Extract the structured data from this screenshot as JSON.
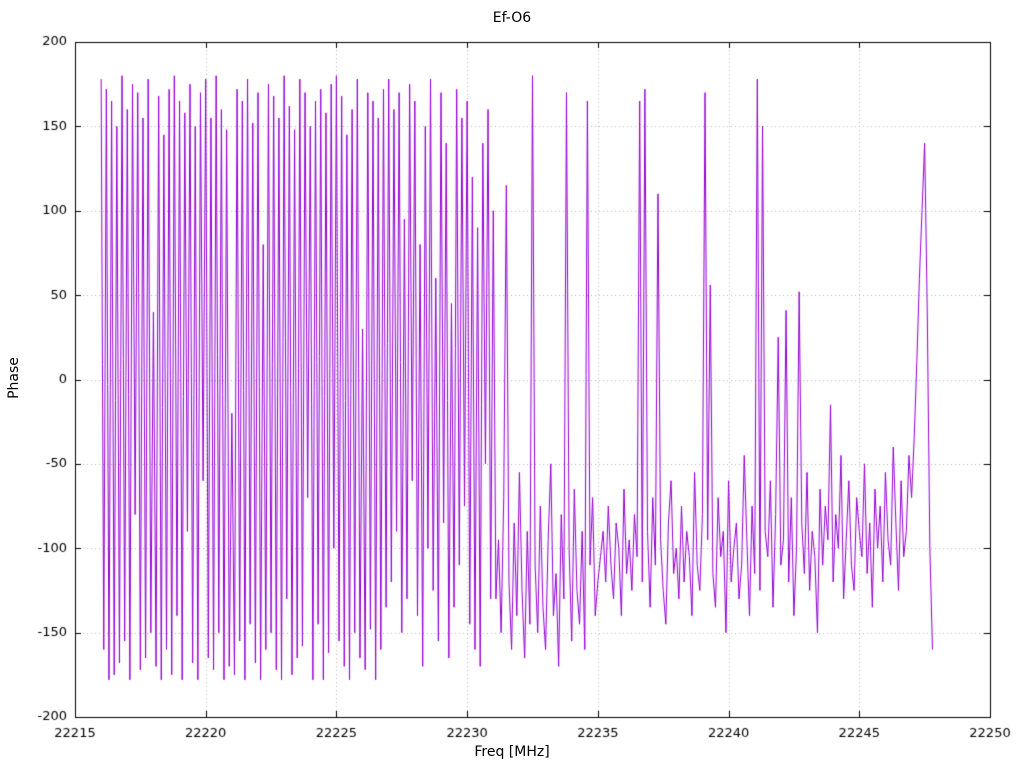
{
  "chart_data": {
    "type": "line",
    "title": "Ef-O6",
    "xlabel": "Freq [MHz]",
    "ylabel": "Phase",
    "xlim": [
      22215,
      22250
    ],
    "ylim": [
      -200,
      200
    ],
    "x_ticks": [
      22215,
      22220,
      22225,
      22230,
      22235,
      22240,
      22245,
      22250
    ],
    "y_ticks": [
      -200,
      -150,
      -100,
      -50,
      0,
      50,
      100,
      150,
      200
    ],
    "grid": true,
    "legend": "none",
    "line_color": "#9400d3",
    "axis_color": "#000000",
    "grid_color": "#b8b8b8",
    "series": [
      {
        "name": "phase",
        "x_start": 22216.0,
        "x_step": 0.1,
        "values": [
          178,
          -160,
          172,
          -178,
          165,
          -175,
          150,
          -168,
          180,
          -155,
          160,
          -178,
          175,
          -80,
          170,
          -172,
          155,
          -165,
          178,
          -150,
          40,
          -170,
          168,
          -178,
          145,
          -160,
          172,
          -175,
          180,
          -140,
          165,
          -178,
          158,
          -90,
          175,
          -168,
          150,
          -178,
          170,
          -60,
          178,
          -165,
          155,
          -172,
          180,
          -150,
          160,
          -178,
          148,
          -170,
          -20,
          -175,
          172,
          -155,
          165,
          -178,
          178,
          -145,
          152,
          -168,
          170,
          -178,
          80,
          -160,
          175,
          -150,
          168,
          -172,
          155,
          -178,
          180,
          -130,
          162,
          -175,
          148,
          -165,
          178,
          -158,
          170,
          -70,
          150,
          -178,
          165,
          -145,
          172,
          -178,
          158,
          -162,
          175,
          -100,
          180,
          -155,
          168,
          -170,
          145,
          -178,
          160,
          -150,
          178,
          -165,
          30,
          -172,
          170,
          -148,
          165,
          -178,
          155,
          -160,
          172,
          -135,
          178,
          -120,
          160,
          -90,
          170,
          -150,
          95,
          -130,
          175,
          -60,
          165,
          -140,
          80,
          -170,
          150,
          -100,
          178,
          -125,
          60,
          -155,
          170,
          -85,
          140,
          -165,
          45,
          -135,
          172,
          -110,
          155,
          -75,
          165,
          -145,
          120,
          -160,
          90,
          -170,
          140,
          -50,
          160,
          -130,
          100,
          -130,
          -95,
          -150,
          -70,
          115,
          -120,
          -160,
          -85,
          -140,
          -55,
          -125,
          -165,
          -90,
          -145,
          180,
          -110,
          -150,
          -75,
          -135,
          -160,
          -95,
          -50,
          -140,
          -115,
          -170,
          -80,
          -130,
          170,
          -100,
          -155,
          -65,
          -125,
          -145,
          -90,
          -160,
          165,
          -110,
          -70,
          -140,
          -120,
          -105,
          -90,
          -120,
          -75,
          -110,
          -130,
          -85,
          -100,
          -140,
          -65,
          -115,
          -95,
          -125,
          -80,
          -105,
          165,
          -120,
          172,
          -90,
          -135,
          -70,
          -110,
          110,
          -95,
          -125,
          -145,
          -85,
          -60,
          -115,
          -100,
          -130,
          -75,
          -120,
          -90,
          -105,
          -140,
          -55,
          -110,
          -125,
          -80,
          170,
          -95,
          56,
          -115,
          -135,
          -70,
          -105,
          -90,
          -150,
          -60,
          -120,
          -100,
          -85,
          -130,
          -110,
          -45,
          -95,
          -140,
          -75,
          -115,
          178,
          -125,
          150,
          -90,
          -105,
          -60,
          -135,
          -80,
          25,
          -110,
          -95,
          41,
          -120,
          -70,
          -140,
          -100,
          52,
          -85,
          -115,
          -55,
          -125,
          -90,
          -105,
          -150,
          -65,
          -110,
          -75,
          -95,
          -15,
          -120,
          -80,
          -100,
          -45,
          -130,
          -95,
          -60,
          -110,
          -125,
          -70,
          -90,
          -105,
          -50,
          -115,
          -85,
          -135,
          -65,
          -100,
          -75,
          -120,
          -55,
          -95,
          -110,
          -40,
          -85,
          -125,
          -60,
          -105,
          -90,
          -45,
          -70,
          -35,
          10,
          60,
          100,
          140,
          40,
          -100,
          -160
        ]
      }
    ]
  }
}
